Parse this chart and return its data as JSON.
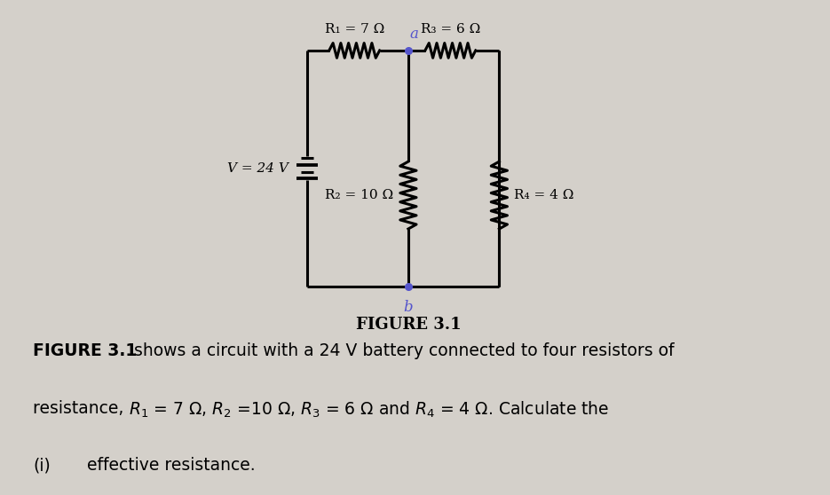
{
  "bg_color": "#d4d0ca",
  "line_color": "#000000",
  "line_width": 2.2,
  "title": "FIGURE 3.1",
  "title_fontsize": 12,
  "desc1_bold": "FIGURE 3.1",
  "desc1_normal": " shows a circuit with a 24 V battery connected to four resistors of",
  "desc2_bold": "resistance, ",
  "desc2_math": "R_1 = 7 Ω, R_2 =10 Ω, R_3 = 6 Ω and R_4 = 4 Ω. Calculate the",
  "desc3": "(i)      effective resistance.",
  "desc_fontsize": 13.5,
  "battery_label": "V = 24 V",
  "R1_label": "R₁ = 7 Ω",
  "R2_label": "R₂ = 10 Ω",
  "R3_label": "R₃ = 6 Ω",
  "R4_label": "R₄ = 4 Ω",
  "node_a_label": "a",
  "node_b_label": "b",
  "node_color": "#5555cc"
}
